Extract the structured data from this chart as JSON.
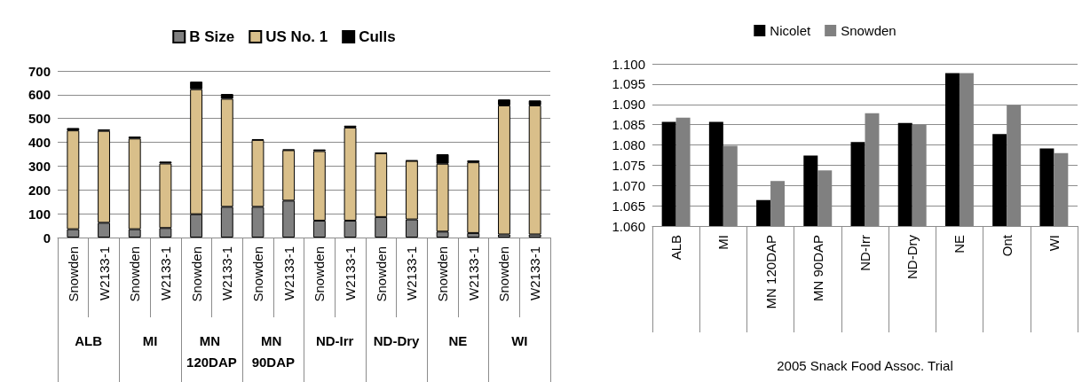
{
  "chart_data": [
    {
      "type": "bar",
      "stacked": true,
      "categories": [
        "Snowden",
        "W2133-1",
        "Snowden",
        "W2133-1",
        "Snowden",
        "W2133-1",
        "Snowden",
        "W2133-1",
        "Snowden",
        "W2133-1",
        "Snowden",
        "W2133-1",
        "Snowden",
        "W2133-1",
        "Snowden",
        "W2133-1"
      ],
      "series": [
        {
          "name": "B Size",
          "color": "#808080",
          "values": [
            35,
            62,
            35,
            40,
            98,
            129,
            129,
            155,
            71,
            71,
            86,
            76,
            25,
            19,
            13,
            13
          ]
        },
        {
          "name": "US No. 1",
          "color": "#d9bf8a",
          "values": [
            415,
            386,
            381,
            271,
            525,
            454,
            281,
            212,
            292,
            391,
            268,
            246,
            285,
            297,
            542,
            542
          ]
        },
        {
          "name": "Culls",
          "color": "#000000",
          "values": [
            10,
            6,
            8,
            8,
            32,
            20,
            3,
            3,
            7,
            8,
            2,
            2,
            40,
            8,
            25,
            21
          ]
        }
      ],
      "annotations": [
        "ALB",
        "MI",
        "MN 120DAP",
        "MN 90DAP",
        "ND-Irr",
        "ND-Dry",
        "NE",
        "WI"
      ],
      "ylim": [
        0,
        700
      ],
      "yticks": [
        0,
        100,
        200,
        300,
        400,
        500,
        600,
        700
      ],
      "grid": "y",
      "legend": "top"
    },
    {
      "type": "bar",
      "categories": [
        "ALB",
        "MI",
        "MN 120DAP",
        "MN 90DAP",
        "ND-Irr",
        "ND-Dry",
        "NE",
        "Ont",
        "WI"
      ],
      "series": [
        {
          "name": "Nicolet",
          "color": "#000000",
          "values": [
            1.0857,
            1.0857,
            1.0664,
            1.0774,
            1.0807,
            1.0854,
            1.0977,
            1.0827,
            1.0791
          ]
        },
        {
          "name": "Snowden",
          "color": "#808080",
          "values": [
            1.0867,
            1.0798,
            1.0711,
            1.0737,
            1.0878,
            1.085,
            1.0977,
            1.0897,
            1.078
          ]
        }
      ],
      "xlabel": "2005 Snack Food Assoc. Trial",
      "ylim": [
        1.06,
        1.1
      ],
      "yticks": [
        {
          "value": 1.06,
          "label": "1.060"
        },
        {
          "value": 1.065,
          "label": "1.065"
        },
        {
          "value": 1.07,
          "label": "1.070"
        },
        {
          "value": 1.075,
          "label": "1.075"
        },
        {
          "value": 1.08,
          "label": "1.080"
        },
        {
          "value": 1.085,
          "label": "1.085"
        },
        {
          "value": 1.09,
          "label": "1.090"
        },
        {
          "value": 1.095,
          "label": "1.095"
        },
        {
          "value": 1.1,
          "label": "1.100"
        }
      ],
      "grid": "y",
      "legend": "top"
    }
  ]
}
